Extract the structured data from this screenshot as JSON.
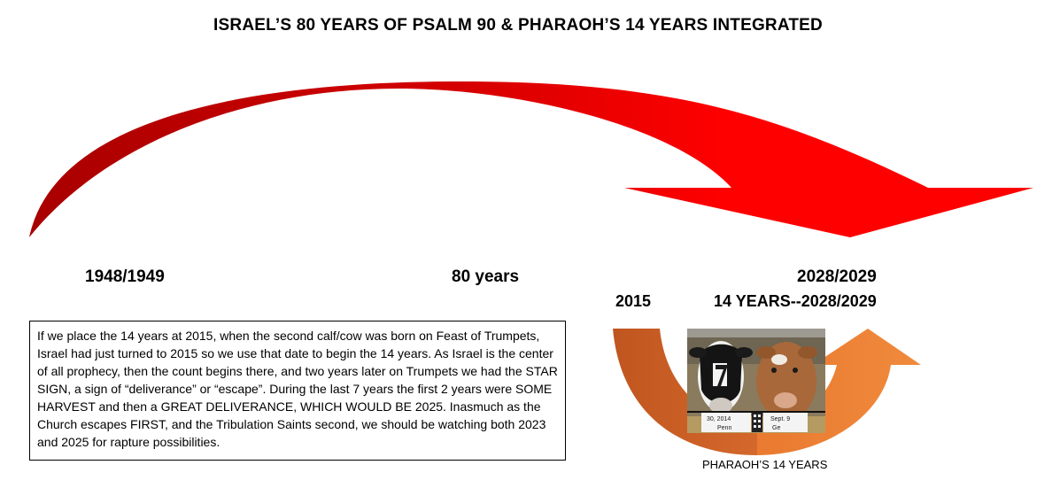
{
  "title": "ISRAEL’S 80 YEARS OF PSALM 90 & PHARAOH’S 14 YEARS INTEGRATED",
  "labels": {
    "start": "1948/1949",
    "span": "80 years",
    "end": "2028/2029",
    "sub_start": "2015",
    "sub_span": "14 YEARS--2028/2029"
  },
  "note": "If we place the 14 years at 2015, when the second calf/cow was born on Feast of Trumpets, Israel had just turned to 2015 so we use that date to begin the 14 years. As Israel is the center of all prophecy, then the count begins there, and two years later on Trumpets we had the STAR SIGN, a sign of “deliverance” or “escape”. During the last 7 years the first 2 years were SOME HARVEST and then a GREAT DELIVERANCE, WHICH WOULD BE 2025. Inasmuch as the Church escapes FIRST, and the Tribulation Saints second, we should be watching both 2023 and 2025 for rapture possibilities.",
  "caption": "PHARAOH’S 14 YEARS",
  "photo_labels": {
    "left_line1": "30, 2014",
    "left_line2": "Penn",
    "right_line1": "Sept. 9",
    "right_line2": "Ge"
  },
  "colors": {
    "big_arrow_dark": "#c00000",
    "big_arrow_light": "#ff0000",
    "small_arrow_left": "#c55a22",
    "small_arrow_right": "#ed7d31"
  }
}
